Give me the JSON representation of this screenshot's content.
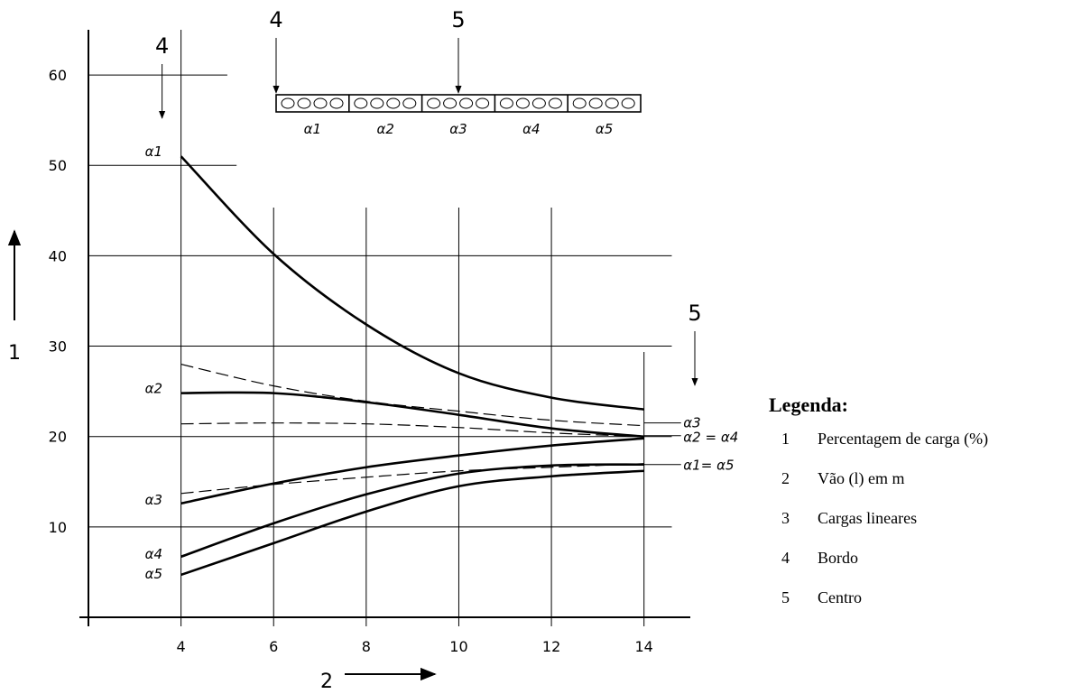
{
  "chart_data": {
    "type": "line",
    "xlabel": "2",
    "ylabel": "1",
    "xlim": [
      2,
      15
    ],
    "ylim": [
      0,
      65
    ],
    "x_ticks": [
      4,
      6,
      8,
      10,
      12,
      14
    ],
    "y_ticks": [
      10,
      20,
      30,
      40,
      50,
      60
    ],
    "grid": true,
    "series": [
      {
        "name": "α1",
        "style": "solid",
        "x": [
          4,
          6,
          8,
          10,
          12,
          14
        ],
        "y": [
          51,
          40.2,
          32.4,
          27,
          24.3,
          23
        ]
      },
      {
        "name": "α2",
        "style": "solid",
        "x": [
          4,
          6,
          8,
          10,
          12,
          14
        ],
        "y": [
          24.8,
          24.8,
          23.8,
          22.4,
          20.9,
          20
        ]
      },
      {
        "name": "α3",
        "style": "solid",
        "x": [
          4,
          6,
          8,
          10,
          12,
          14
        ],
        "y": [
          12.6,
          14.8,
          16.6,
          17.9,
          19,
          19.8
        ]
      },
      {
        "name": "α4",
        "style": "solid",
        "x": [
          4,
          6,
          8,
          10,
          12,
          14
        ],
        "y": [
          6.7,
          10.4,
          13.6,
          15.9,
          16.8,
          16.9
        ]
      },
      {
        "name": "α5",
        "style": "solid",
        "x": [
          4,
          6,
          8,
          10,
          12,
          14
        ],
        "y": [
          4.7,
          8.2,
          11.7,
          14.5,
          15.6,
          16.2
        ]
      },
      {
        "name": "α2",
        "style": "dashed",
        "x": [
          4,
          6,
          8,
          10,
          12,
          14
        ],
        "y": [
          28,
          25.6,
          23.9,
          22.8,
          21.8,
          21.2
        ]
      },
      {
        "name": "α3",
        "style": "dashed",
        "x": [
          4,
          6,
          8,
          10,
          12,
          14
        ],
        "y": [
          21.4,
          21.5,
          21.4,
          21,
          20.4,
          20
        ]
      },
      {
        "name": "α3",
        "style": "dashed",
        "x": [
          4,
          6,
          8,
          10,
          12,
          14
        ],
        "y": [
          13.7,
          14.7,
          15.5,
          16.2,
          16.6,
          17
        ]
      }
    ],
    "curve_labels": [
      {
        "text": "α1",
        "x": 3.6,
        "y": 51.5
      },
      {
        "text": "α2",
        "x": 3.6,
        "y": 25.3
      },
      {
        "text": "α3",
        "x": 3.6,
        "y": 13.0
      },
      {
        "text": "α4",
        "x": 3.6,
        "y": 7.0
      },
      {
        "text": "α5",
        "x": 3.6,
        "y": 4.8
      },
      {
        "text": "α3",
        "x": 14.85,
        "y": 21.5
      },
      {
        "text": "α2 = α4",
        "x": 14.85,
        "y": 19.9
      },
      {
        "text": "α1= α5",
        "x": 14.85,
        "y": 16.8
      }
    ],
    "markers": [
      {
        "label": "4",
        "x": 4
      },
      {
        "label": "5",
        "x": 15.2
      }
    ],
    "inset": {
      "top_labels": [
        {
          "text": "4",
          "cell": 0
        },
        {
          "text": "5",
          "cell": 2.5
        }
      ],
      "cell_labels": [
        "α1",
        "α2",
        "α3",
        "α4",
        "α5"
      ]
    }
  },
  "legend": {
    "title": "Legenda:",
    "items": [
      {
        "num": "1",
        "text": "Percentagem de carga (%)"
      },
      {
        "num": "2",
        "text": "Vão (l) em m"
      },
      {
        "num": "3",
        "text": "Cargas lineares"
      },
      {
        "num": "4",
        "text": "Bordo"
      },
      {
        "num": "5",
        "text": "Centro"
      }
    ]
  }
}
